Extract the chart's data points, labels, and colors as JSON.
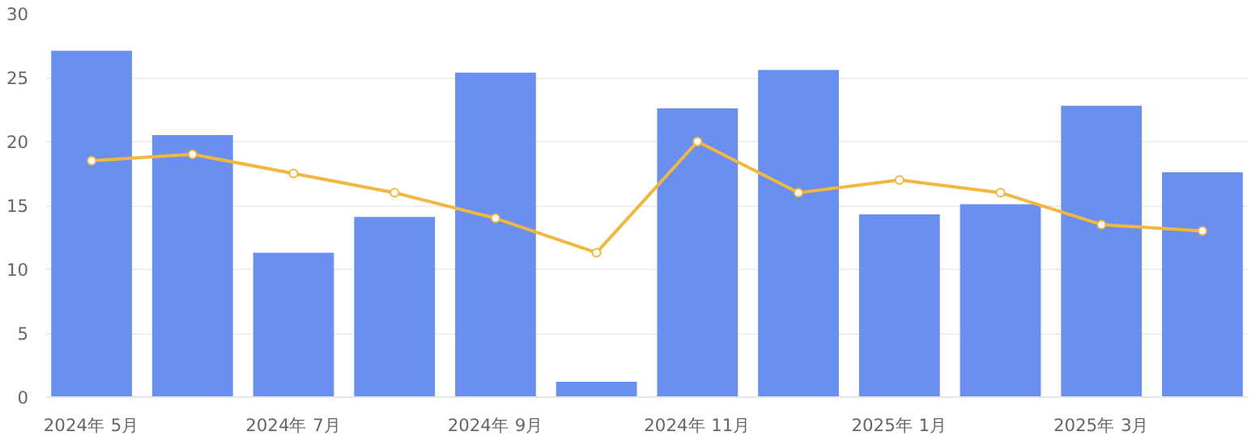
{
  "chart_data": {
    "type": "bar",
    "categories": [
      "2024年 5月",
      null,
      "2024年 7月",
      null,
      "2024年 9月",
      null,
      "2024年 11月",
      null,
      "2025年 1月",
      null,
      "2025年 3月",
      null
    ],
    "series": [
      {
        "color": "#6a8ff0",
        "values": [
          27.1,
          20.5,
          11.3,
          14.1,
          25.4,
          1.2,
          22.6,
          25.6,
          14.3,
          15.1,
          22.8,
          17.6
        ]
      },
      {
        "type": "line",
        "color": "#f0b840",
        "marker": "circle",
        "values": [
          18.5,
          19.0,
          17.5,
          16.0,
          14.0,
          11.3,
          20.0,
          16.0,
          17.0,
          16.0,
          13.5,
          13.0
        ]
      }
    ],
    "ylim": [
      0,
      30
    ],
    "yticks": [
      0,
      5,
      10,
      15,
      20,
      25,
      30
    ],
    "grid": "y"
  }
}
